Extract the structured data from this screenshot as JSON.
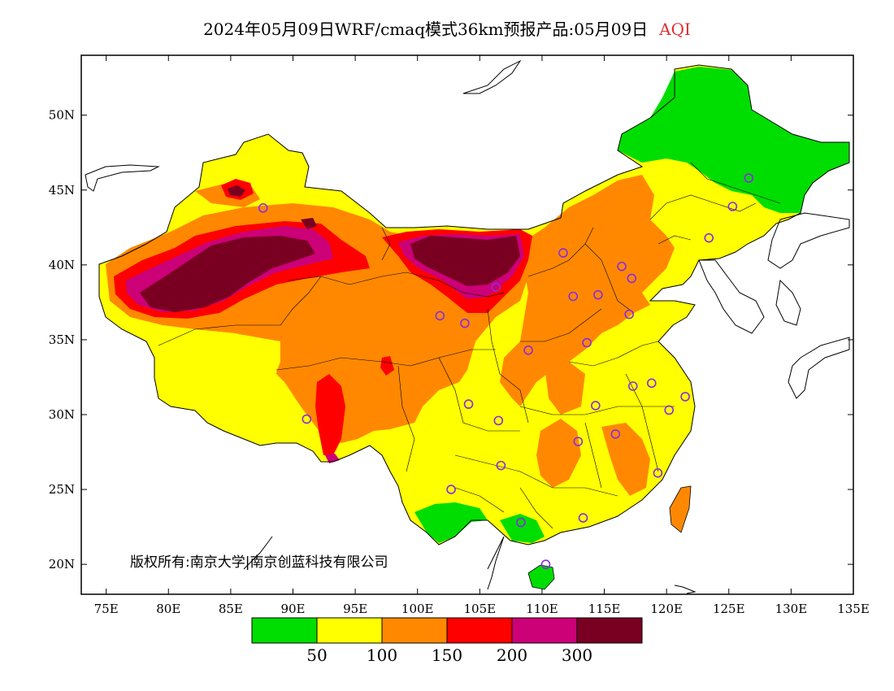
{
  "title": {
    "text": "2024年05月09日WRF/cmaq模式36km预报产品:05月09日",
    "product": "AQI"
  },
  "copyright": "版权所有:南京大学|南京创蓝科技有限公司",
  "axes": {
    "lat_labels": [
      "20N",
      "25N",
      "30N",
      "35N",
      "40N",
      "45N",
      "50N"
    ],
    "lon_labels": [
      "75E",
      "80E",
      "85E",
      "90E",
      "95E",
      "100E",
      "105E",
      "110E",
      "115E",
      "120E",
      "125E",
      "130E",
      "135E"
    ],
    "lat_values": [
      20,
      25,
      30,
      35,
      40,
      45,
      50
    ],
    "lon_values": [
      75,
      80,
      85,
      90,
      95,
      100,
      105,
      110,
      115,
      120,
      125,
      130,
      135
    ],
    "lon_range": [
      73,
      135
    ],
    "lat_range": [
      18,
      54
    ]
  },
  "colorbar": {
    "colors": [
      "#00dd00",
      "#ffff00",
      "#ff8800",
      "#ff0000",
      "#cc0077",
      "#7a0022"
    ],
    "thresholds": [
      "50",
      "100",
      "150",
      "200",
      "300"
    ]
  },
  "stations": [
    {
      "lon": 87.6,
      "lat": 43.8
    },
    {
      "lon": 91.1,
      "lat": 29.7
    },
    {
      "lon": 101.8,
      "lat": 36.6
    },
    {
      "lon": 103.8,
      "lat": 36.1
    },
    {
      "lon": 106.3,
      "lat": 38.5
    },
    {
      "lon": 111.7,
      "lat": 40.8
    },
    {
      "lon": 108.9,
      "lat": 34.3
    },
    {
      "lon": 112.5,
      "lat": 37.9
    },
    {
      "lon": 114.5,
      "lat": 38.0
    },
    {
      "lon": 116.4,
      "lat": 39.9
    },
    {
      "lon": 117.2,
      "lat": 39.1
    },
    {
      "lon": 117.0,
      "lat": 36.7
    },
    {
      "lon": 113.6,
      "lat": 34.8
    },
    {
      "lon": 104.1,
      "lat": 30.7
    },
    {
      "lon": 106.5,
      "lat": 29.6
    },
    {
      "lon": 106.7,
      "lat": 26.6
    },
    {
      "lon": 102.7,
      "lat": 25.0
    },
    {
      "lon": 108.3,
      "lat": 22.8
    },
    {
      "lon": 110.3,
      "lat": 20.0
    },
    {
      "lon": 113.3,
      "lat": 23.1
    },
    {
      "lon": 112.9,
      "lat": 28.2
    },
    {
      "lon": 114.3,
      "lat": 30.6
    },
    {
      "lon": 115.9,
      "lat": 28.7
    },
    {
      "lon": 117.3,
      "lat": 31.9
    },
    {
      "lon": 118.8,
      "lat": 32.1
    },
    {
      "lon": 121.5,
      "lat": 31.2
    },
    {
      "lon": 120.2,
      "lat": 30.3
    },
    {
      "lon": 119.3,
      "lat": 26.1
    },
    {
      "lon": 123.4,
      "lat": 41.8
    },
    {
      "lon": 125.3,
      "lat": 43.9
    },
    {
      "lon": 126.6,
      "lat": 45.8
    }
  ]
}
